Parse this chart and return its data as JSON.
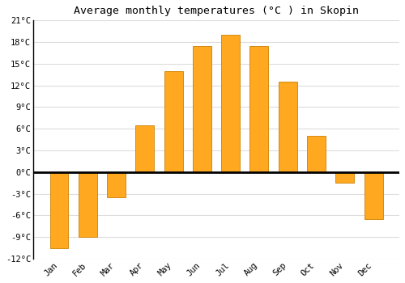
{
  "title": "Average monthly temperatures (°C ) in Skopin",
  "months": [
    "Jan",
    "Feb",
    "Mar",
    "Apr",
    "May",
    "Jun",
    "Jul",
    "Aug",
    "Sep",
    "Oct",
    "Nov",
    "Dec"
  ],
  "values": [
    -10.5,
    -9.0,
    -3.5,
    6.5,
    14.0,
    17.5,
    19.0,
    17.5,
    12.5,
    5.0,
    -1.5,
    -6.5
  ],
  "bar_color": "#FFA820",
  "bar_edge_color": "#CC8000",
  "background_color": "#FFFFFF",
  "grid_color": "#DDDDDD",
  "zero_line_color": "#000000",
  "left_spine_color": "#000000",
  "ylim": [
    -12,
    21
  ],
  "yticks": [
    -12,
    -9,
    -6,
    -3,
    0,
    3,
    6,
    9,
    12,
    15,
    18,
    21
  ],
  "ytick_labels": [
    "-12°C",
    "-9°C",
    "-6°C",
    "-3°C",
    "0°C",
    "3°C",
    "6°C",
    "9°C",
    "12°C",
    "15°C",
    "18°C",
    "21°C"
  ],
  "title_fontsize": 9.5,
  "tick_fontsize": 7.5,
  "font_family": "monospace",
  "bar_width": 0.65
}
